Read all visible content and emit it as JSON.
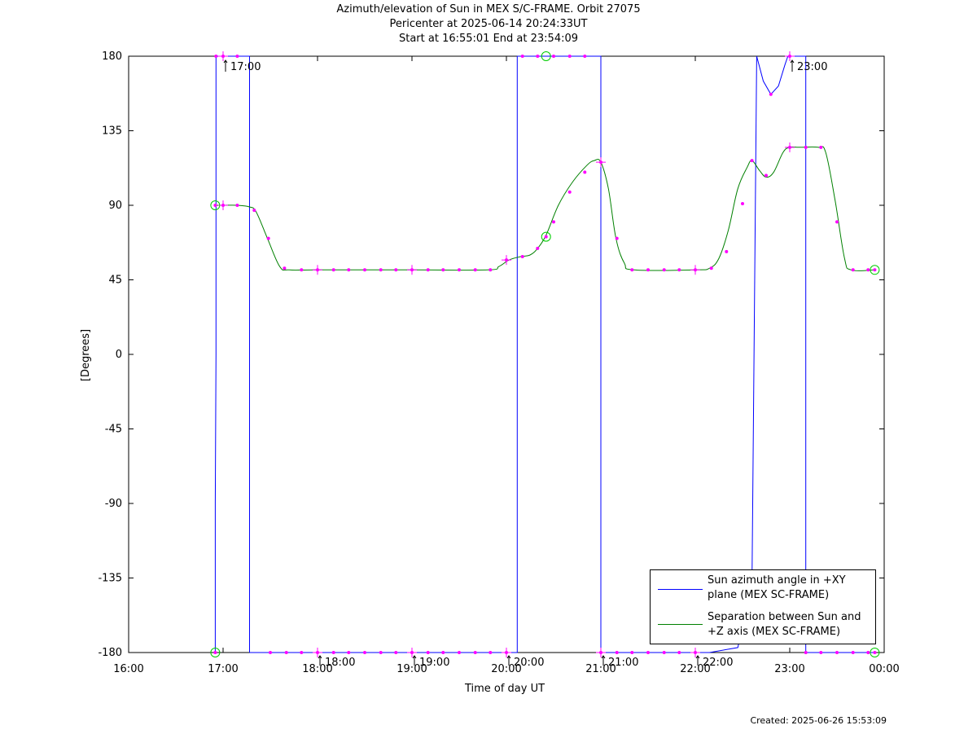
{
  "title_lines": [
    "Azimuth/elevation of Sun in MEX S/C-FRAME.  Orbit 27075",
    "Pericenter at 2025-06-14 20:24:33UT",
    "Start at 16:55:01 End at 23:54:09"
  ],
  "footer": "Created: 2025-06-26 15:53:09",
  "colors": {
    "azimuth": "#0000ff",
    "separation": "#008000",
    "marker": "#ff00ff",
    "circle_marker": "#00cc00",
    "axes": "#000000"
  },
  "legend": [
    {
      "label_line1": "Sun azimuth angle in +XY",
      "label_line2": "plane (MEX SC-FRAME)",
      "color": "#0000ff"
    },
    {
      "label_line1": "Separation between Sun and",
      "label_line2": "+Z axis (MEX SC-FRAME)",
      "color": "#008000"
    }
  ],
  "chart_data": {
    "type": "line",
    "xlabel": "Time of day UT",
    "ylabel": "[Degrees]",
    "xlim": [
      16.0,
      24.0
    ],
    "ylim": [
      -180,
      180
    ],
    "x_ticks": [
      {
        "v": 16.0,
        "label": "16:00"
      },
      {
        "v": 17.0,
        "label": "17:00"
      },
      {
        "v": 18.0,
        "label": "18:00"
      },
      {
        "v": 19.0,
        "label": "19:00"
      },
      {
        "v": 20.0,
        "label": "20:00"
      },
      {
        "v": 21.0,
        "label": "21:00"
      },
      {
        "v": 22.0,
        "label": "22:00"
      },
      {
        "v": 23.0,
        "label": "23:00"
      },
      {
        "v": 24.0,
        "label": "00:00"
      }
    ],
    "y_ticks": [
      180,
      135,
      90,
      45,
      0,
      -45,
      -90,
      -135,
      -180
    ],
    "hour_markers": [
      {
        "x": 17.0,
        "y": 180,
        "label": "17:00"
      },
      {
        "x": 18.0,
        "y": -180,
        "label": "18:00"
      },
      {
        "x": 19.0,
        "y": -180,
        "label": "19:00"
      },
      {
        "x": 20.0,
        "y": -180,
        "label": "20:00"
      },
      {
        "x": 21.0,
        "y": -180,
        "label": "21:00"
      },
      {
        "x": 22.0,
        "y": -180,
        "label": "22:00"
      },
      {
        "x": 23.0,
        "y": 180,
        "label": "23:00"
      }
    ],
    "series": [
      {
        "name": "Sun azimuth angle in +XY plane (MEX SC-FRAME)",
        "segments": [
          [
            [
              16.917,
              -180
            ],
            [
              16.917,
              -90
            ],
            [
              16.925,
              0
            ],
            [
              16.925,
              180
            ]
          ],
          [
            [
              16.925,
              180
            ],
            [
              17.28,
              180
            ],
            [
              17.28,
              -180
            ]
          ],
          [
            [
              17.28,
              -180
            ],
            [
              20.115,
              -180
            ],
            [
              20.115,
              180
            ]
          ],
          [
            [
              20.115,
              180
            ],
            [
              21.0,
              180
            ],
            [
              21.0,
              -180
            ]
          ],
          [
            [
              21.0,
              -180
            ],
            [
              22.15,
              -180
            ],
            [
              22.45,
              -177
            ],
            [
              22.6,
              -140
            ],
            [
              22.65,
              180
            ]
          ],
          [
            [
              22.65,
              180
            ],
            [
              22.72,
              165
            ],
            [
              22.8,
              157
            ],
            [
              22.88,
              162
            ],
            [
              22.95,
              175
            ],
            [
              22.98,
              180
            ]
          ],
          [
            [
              22.98,
              180
            ],
            [
              23.17,
              180
            ],
            [
              23.17,
              -180
            ]
          ],
          [
            [
              23.17,
              -180
            ],
            [
              23.9,
              -180
            ]
          ]
        ]
      },
      {
        "name": "Separation between Sun and +Z axis (MEX SC-FRAME)",
        "points": [
          [
            16.917,
            90
          ],
          [
            17.0,
            90
          ],
          [
            17.15,
            90
          ],
          [
            17.28,
            89
          ],
          [
            17.35,
            86
          ],
          [
            17.47,
            70
          ],
          [
            17.6,
            53
          ],
          [
            17.7,
            51
          ],
          [
            18.0,
            51
          ],
          [
            19.0,
            51
          ],
          [
            19.8,
            51
          ],
          [
            19.92,
            53
          ],
          [
            20.03,
            57
          ],
          [
            20.15,
            59
          ],
          [
            20.25,
            60
          ],
          [
            20.33,
            64
          ],
          [
            20.42,
            72
          ],
          [
            20.55,
            90
          ],
          [
            20.7,
            104
          ],
          [
            20.85,
            114
          ],
          [
            20.93,
            117
          ],
          [
            21.0,
            116
          ],
          [
            21.08,
            100
          ],
          [
            21.16,
            70
          ],
          [
            21.25,
            55
          ],
          [
            21.35,
            51
          ],
          [
            22.0,
            51
          ],
          [
            22.15,
            52
          ],
          [
            22.25,
            58
          ],
          [
            22.35,
            75
          ],
          [
            22.45,
            100
          ],
          [
            22.55,
            113
          ],
          [
            22.6,
            117
          ],
          [
            22.68,
            111
          ],
          [
            22.75,
            107
          ],
          [
            22.83,
            110
          ],
          [
            22.93,
            122
          ],
          [
            23.0,
            125
          ],
          [
            23.1,
            125
          ],
          [
            23.3,
            125
          ],
          [
            23.38,
            122
          ],
          [
            23.48,
            93
          ],
          [
            23.58,
            58
          ],
          [
            23.65,
            51
          ],
          [
            23.9,
            51
          ]
        ]
      }
    ],
    "markers": [
      [
        16.917,
        90
      ],
      [
        17.0,
        90
      ],
      [
        17.15,
        90
      ],
      [
        17.33,
        87
      ],
      [
        17.48,
        70
      ],
      [
        17.65,
        52
      ],
      [
        17.83,
        51
      ],
      [
        18.0,
        51
      ],
      [
        18.17,
        51
      ],
      [
        18.33,
        51
      ],
      [
        18.5,
        51
      ],
      [
        18.67,
        51
      ],
      [
        18.83,
        51
      ],
      [
        19.0,
        51
      ],
      [
        19.17,
        51
      ],
      [
        19.33,
        51
      ],
      [
        19.5,
        51
      ],
      [
        19.67,
        51
      ],
      [
        19.83,
        51
      ],
      [
        20.0,
        57
      ],
      [
        20.17,
        59
      ],
      [
        20.33,
        64
      ],
      [
        20.42,
        71
      ],
      [
        20.5,
        80
      ],
      [
        20.67,
        98
      ],
      [
        20.83,
        110
      ],
      [
        21.0,
        116
      ],
      [
        21.17,
        70
      ],
      [
        21.33,
        51
      ],
      [
        21.5,
        51
      ],
      [
        21.67,
        51
      ],
      [
        21.83,
        51
      ],
      [
        22.0,
        51
      ],
      [
        22.17,
        52
      ],
      [
        22.33,
        62
      ],
      [
        22.5,
        91
      ],
      [
        22.6,
        117
      ],
      [
        22.75,
        108
      ],
      [
        23.0,
        125
      ],
      [
        23.17,
        125
      ],
      [
        23.33,
        125
      ],
      [
        23.5,
        80
      ],
      [
        23.67,
        51
      ],
      [
        23.83,
        51
      ],
      [
        23.9,
        51
      ],
      [
        16.925,
        180
      ],
      [
        17.0,
        180
      ],
      [
        17.15,
        180
      ],
      [
        20.17,
        180
      ],
      [
        20.33,
        180
      ],
      [
        20.5,
        180
      ],
      [
        20.67,
        180
      ],
      [
        20.83,
        180
      ],
      [
        22.8,
        157
      ],
      [
        23.0,
        180
      ],
      [
        16.917,
        -180
      ],
      [
        17.5,
        -180
      ],
      [
        17.67,
        -180
      ],
      [
        17.83,
        -180
      ],
      [
        18.0,
        -180
      ],
      [
        18.17,
        -180
      ],
      [
        18.33,
        -180
      ],
      [
        18.5,
        -180
      ],
      [
        18.67,
        -180
      ],
      [
        18.83,
        -180
      ],
      [
        19.0,
        -180
      ],
      [
        19.17,
        -180
      ],
      [
        19.33,
        -180
      ],
      [
        19.5,
        -180
      ],
      [
        19.67,
        -180
      ],
      [
        19.83,
        -180
      ],
      [
        20.0,
        -180
      ],
      [
        21.0,
        -180
      ],
      [
        21.17,
        -180
      ],
      [
        21.33,
        -180
      ],
      [
        21.5,
        -180
      ],
      [
        21.67,
        -180
      ],
      [
        21.83,
        -180
      ],
      [
        22.0,
        -180
      ],
      [
        23.17,
        -180
      ],
      [
        23.33,
        -180
      ],
      [
        23.5,
        -180
      ],
      [
        23.67,
        -180
      ],
      [
        23.83,
        -180
      ],
      [
        23.9,
        -180
      ]
    ],
    "circle_markers": [
      [
        16.917,
        90
      ],
      [
        16.917,
        -180
      ],
      [
        20.42,
        71
      ],
      [
        20.42,
        180
      ],
      [
        23.9,
        51
      ],
      [
        23.9,
        -180
      ]
    ],
    "cross_markers": [
      [
        17.0,
        90
      ],
      [
        17.0,
        180
      ],
      [
        18.0,
        51
      ],
      [
        19.0,
        51
      ],
      [
        20.0,
        57
      ],
      [
        21.0,
        116
      ],
      [
        22.0,
        51
      ],
      [
        23.0,
        125
      ],
      [
        23.0,
        180
      ],
      [
        18.0,
        -180
      ],
      [
        19.0,
        -180
      ],
      [
        20.0,
        -180
      ],
      [
        21.0,
        -180
      ],
      [
        22.0,
        -180
      ]
    ]
  }
}
